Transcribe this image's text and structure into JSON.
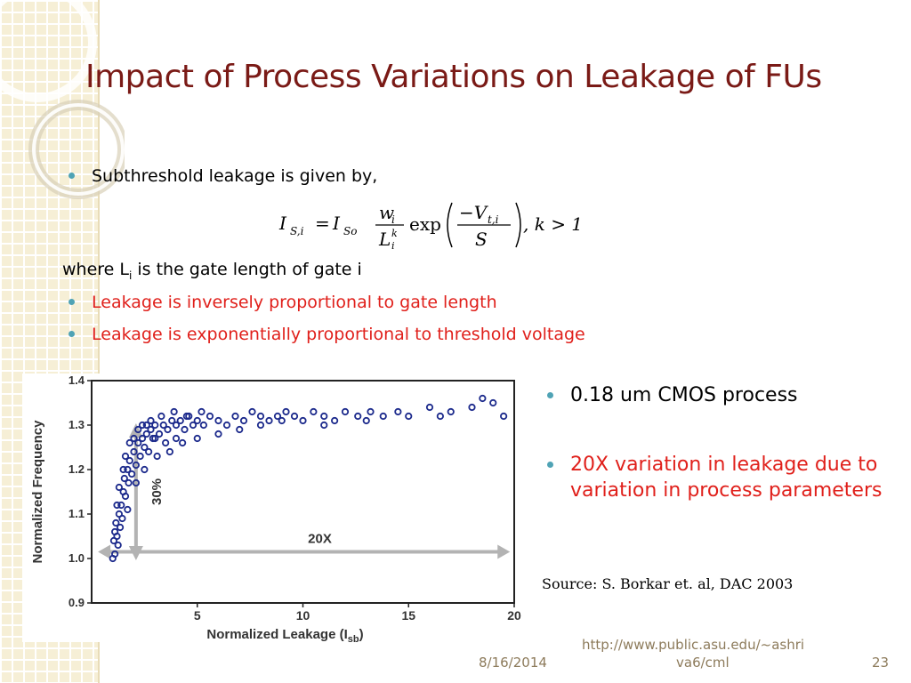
{
  "title": "Impact of Process Variations on Leakage of FUs",
  "bullets": {
    "subthreshold": "Subthreshold leakage is given by,",
    "where_prefix": "where L",
    "where_sub": "i",
    "where_suffix": " is the gate length of gate i",
    "inverse": "Leakage is inversely proportional to gate length",
    "exponential": "Leakage is exponentially proportional to threshold voltage"
  },
  "formula": {
    "lhs": "I",
    "lhs_sub": "S,i",
    "eq": "=",
    "i_so": "I",
    "i_so_sub": "So",
    "num": "w",
    "num_sub": "i",
    "den": "L",
    "den_sup": "k",
    "den_sub": "i",
    "exp": "exp",
    "inner_num": "−V",
    "inner_num_sub": "t,i",
    "inner_den": "S",
    "tail": ", k > 1"
  },
  "right": {
    "process": "0.18 um CMOS process",
    "variation": "20X variation in leakage due to variation in process parameters",
    "source": "Source: S. Borkar et. al, DAC 2003"
  },
  "footer": {
    "date": "8/16/2014",
    "url_line1": "http://www.public.asu.edu/~ashri",
    "url_line2": "va6/cml",
    "page": "23"
  },
  "colors": {
    "title": "#7a1a16",
    "red_text": "#e0201b",
    "bullet": "#4fa3b5",
    "scatter": "#1c2a8c",
    "arrow": "#b3b3b3"
  },
  "chart_data": {
    "type": "scatter",
    "xlabel": "Normalized Leakage (I",
    "xlabel_sub": "sb",
    "xlabel_end": ")",
    "ylabel": "Normalized Frequency",
    "xlim": [
      0,
      20
    ],
    "ylim": [
      0.9,
      1.4
    ],
    "xticks": [
      5,
      10,
      15,
      20
    ],
    "yticks": [
      0.9,
      1.0,
      1.1,
      1.2,
      1.3,
      1.4
    ],
    "ytick_labels": [
      "0.9",
      "1.0",
      "1.1",
      "1.2",
      "1.3",
      "1.4"
    ],
    "xtick_labels": [
      "5",
      "10",
      "15",
      "20"
    ],
    "annotations": {
      "vertical": "30%",
      "horizontal": "20X"
    },
    "series": [
      {
        "points": [
          [
            1.0,
            1.0
          ],
          [
            1.05,
            1.04
          ],
          [
            1.1,
            1.06
          ],
          [
            1.15,
            1.08
          ],
          [
            1.2,
            1.05
          ],
          [
            1.3,
            1.1
          ],
          [
            1.25,
            1.03
          ],
          [
            1.4,
            1.12
          ],
          [
            1.45,
            1.09
          ],
          [
            1.5,
            1.15
          ],
          [
            1.55,
            1.18
          ],
          [
            1.6,
            1.14
          ],
          [
            1.7,
            1.2
          ],
          [
            1.75,
            1.17
          ],
          [
            1.8,
            1.22
          ],
          [
            1.9,
            1.19
          ],
          [
            2.0,
            1.24
          ],
          [
            2.1,
            1.21
          ],
          [
            2.2,
            1.26
          ],
          [
            2.3,
            1.23
          ],
          [
            2.4,
            1.27
          ],
          [
            2.5,
            1.25
          ],
          [
            2.6,
            1.28
          ],
          [
            2.7,
            1.24
          ],
          [
            2.8,
            1.29
          ],
          [
            2.9,
            1.27
          ],
          [
            3.0,
            1.3
          ],
          [
            3.2,
            1.28
          ],
          [
            3.4,
            1.3
          ],
          [
            3.6,
            1.29
          ],
          [
            3.8,
            1.31
          ],
          [
            4.0,
            1.3
          ],
          [
            4.2,
            1.31
          ],
          [
            4.4,
            1.29
          ],
          [
            4.6,
            1.32
          ],
          [
            4.8,
            1.3
          ],
          [
            5.0,
            1.31
          ],
          [
            5.3,
            1.3
          ],
          [
            5.6,
            1.32
          ],
          [
            6.0,
            1.31
          ],
          [
            6.4,
            1.3
          ],
          [
            6.8,
            1.32
          ],
          [
            7.2,
            1.31
          ],
          [
            7.6,
            1.33
          ],
          [
            8.0,
            1.32
          ],
          [
            8.4,
            1.31
          ],
          [
            8.8,
            1.32
          ],
          [
            9.2,
            1.33
          ],
          [
            9.6,
            1.32
          ],
          [
            10.0,
            1.31
          ],
          [
            10.5,
            1.33
          ],
          [
            11.0,
            1.32
          ],
          [
            11.5,
            1.31
          ],
          [
            12.0,
            1.33
          ],
          [
            12.6,
            1.32
          ],
          [
            13.2,
            1.33
          ],
          [
            13.8,
            1.32
          ],
          [
            14.5,
            1.33
          ],
          [
            15.0,
            1.32
          ],
          [
            16.0,
            1.34
          ],
          [
            17.0,
            1.33
          ],
          [
            18.0,
            1.34
          ],
          [
            19.0,
            1.35
          ],
          [
            19.5,
            1.32
          ],
          [
            1.2,
            1.12
          ],
          [
            1.5,
            1.2
          ],
          [
            1.8,
            1.26
          ],
          [
            2.2,
            1.29
          ],
          [
            2.6,
            1.3
          ],
          [
            3.0,
            1.27
          ],
          [
            3.5,
            1.26
          ],
          [
            4.0,
            1.27
          ],
          [
            1.3,
            1.16
          ],
          [
            1.6,
            1.23
          ],
          [
            2.0,
            1.27
          ],
          [
            2.4,
            1.3
          ],
          [
            2.8,
            1.31
          ],
          [
            3.3,
            1.32
          ],
          [
            3.9,
            1.33
          ],
          [
            4.5,
            1.32
          ],
          [
            5.2,
            1.33
          ],
          [
            1.1,
            1.01
          ],
          [
            1.35,
            1.07
          ],
          [
            1.7,
            1.11
          ],
          [
            2.1,
            1.17
          ],
          [
            2.5,
            1.2
          ],
          [
            3.1,
            1.23
          ],
          [
            3.7,
            1.24
          ],
          [
            4.3,
            1.26
          ],
          [
            5.0,
            1.27
          ],
          [
            6.0,
            1.28
          ],
          [
            7.0,
            1.29
          ],
          [
            8.0,
            1.3
          ],
          [
            9.0,
            1.31
          ],
          [
            11.0,
            1.3
          ],
          [
            13.0,
            1.31
          ],
          [
            16.5,
            1.32
          ],
          [
            18.5,
            1.36
          ]
        ]
      }
    ]
  }
}
